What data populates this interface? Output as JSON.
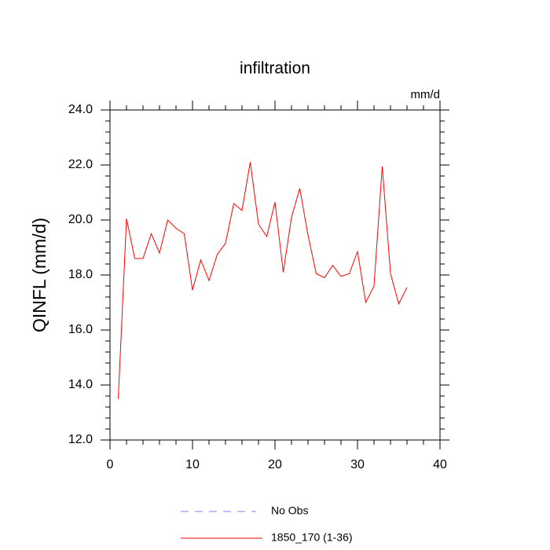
{
  "chart_data": {
    "type": "line",
    "title": "infiltration",
    "units": "mm/d",
    "y_label": "QINFL  (mm/d)",
    "x": [
      1,
      2,
      3,
      4,
      5,
      6,
      7,
      8,
      9,
      10,
      11,
      12,
      13,
      14,
      15,
      16,
      17,
      18,
      19,
      20,
      21,
      22,
      23,
      24,
      25,
      26,
      27,
      28,
      29,
      30,
      31,
      32,
      33,
      34,
      35,
      36
    ],
    "series": [
      {
        "name": "1850_170 (1-36)",
        "color": "#ff0000",
        "values": [
          13.5,
          20.05,
          18.6,
          18.6,
          19.5,
          18.8,
          20.0,
          19.7,
          19.5,
          17.45,
          18.55,
          17.8,
          18.75,
          19.15,
          20.6,
          20.35,
          22.1,
          19.85,
          19.4,
          20.65,
          18.1,
          20.1,
          21.15,
          19.45,
          18.05,
          17.9,
          18.35,
          17.95,
          18.05,
          18.85,
          17.0,
          17.6,
          21.95,
          18.05,
          16.95,
          17.55
        ]
      }
    ],
    "legend": [
      {
        "name": "No Obs",
        "color": "#8080ff",
        "dashed": true
      },
      {
        "name": "1850_170 (1-36)",
        "color": "#ff0000",
        "dashed": false
      }
    ],
    "xlim": [
      0,
      40
    ],
    "xticks": [
      0,
      10,
      20,
      30,
      40
    ],
    "xminorticks": [
      2,
      4,
      6,
      8,
      12,
      14,
      16,
      18,
      22,
      24,
      26,
      28,
      32,
      34,
      36,
      38
    ],
    "ylim": [
      12,
      24
    ],
    "yticks": [
      {
        "value": 12,
        "label": "12.0"
      },
      {
        "value": 14,
        "label": "14.0"
      },
      {
        "value": 16,
        "label": "16.0"
      },
      {
        "value": 18,
        "label": "18.0"
      },
      {
        "value": 20,
        "label": "20.0"
      },
      {
        "value": 22,
        "label": "22.0"
      },
      {
        "value": 24,
        "label": "24.0"
      }
    ],
    "yminorticks": [
      12.4,
      12.8,
      13.2,
      13.6,
      14.4,
      14.8,
      15.2,
      15.6,
      16.4,
      16.8,
      17.2,
      17.6,
      18.4,
      18.8,
      19.2,
      19.6,
      20.4,
      20.8,
      21.2,
      21.6,
      22.4,
      22.8,
      23.2,
      23.6
    ],
    "grid": false
  }
}
